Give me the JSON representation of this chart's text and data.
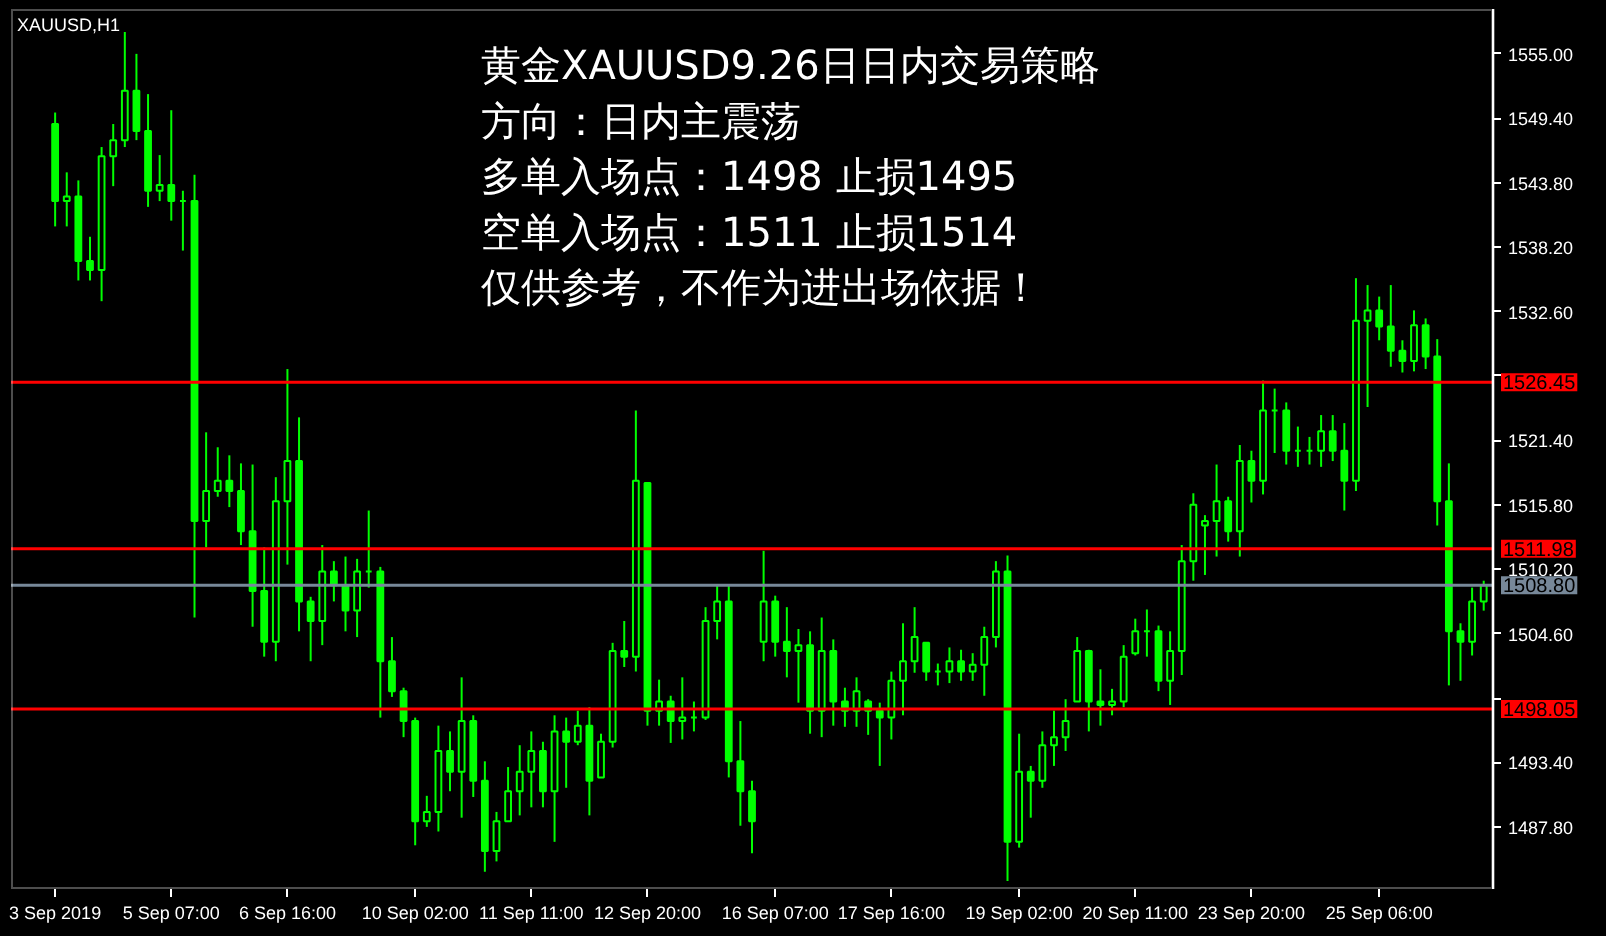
{
  "chart_data": {
    "type": "candlestick",
    "title": "XAUUSD,H1",
    "annotations": [
      "黄金XAUUSD9.26日日内交易策略",
      "方向：日内主震荡",
      "多单入场点：1498  止损1495",
      "空单入场点：1511  止损1514",
      "仅供参考，不作为进出场依据！"
    ],
    "categories": [
      "3 Sep 2019",
      null,
      null,
      null,
      null,
      null,
      null,
      null,
      null,
      null,
      "5 Sep 07:00",
      null,
      null,
      null,
      null,
      null,
      null,
      null,
      null,
      null,
      "6 Sep 16:00",
      null,
      null,
      null,
      null,
      null,
      null,
      null,
      null,
      null,
      null,
      "10 Sep 02:00",
      null,
      null,
      null,
      null,
      null,
      null,
      null,
      null,
      null,
      "11 Sep 11:00",
      null,
      null,
      null,
      null,
      null,
      null,
      null,
      null,
      null,
      "12 Sep 20:00",
      null,
      null,
      null,
      null,
      null,
      null,
      null,
      null,
      null,
      null,
      "16 Sep 07:00",
      null,
      null,
      null,
      null,
      null,
      null,
      null,
      null,
      null,
      "17 Sep 16:00",
      null,
      null,
      null,
      null,
      null,
      null,
      null,
      null,
      null,
      null,
      "19 Sep 02:00",
      null,
      null,
      null,
      null,
      null,
      null,
      null,
      null,
      null,
      "20 Sep 11:00",
      null,
      null,
      null,
      null,
      null,
      null,
      null,
      null,
      null,
      "23 Sep 20:00",
      null,
      null,
      null,
      null,
      null,
      null,
      null,
      null,
      null,
      null,
      "25 Sep 06:00",
      null,
      null,
      null,
      null,
      null,
      null,
      null,
      null,
      null
    ],
    "color": "#00ff00",
    "ohlc": [
      [
        1548.9,
        1549.9,
        1540.0,
        1542.2
      ],
      [
        1542.2,
        1544.7,
        1540.0,
        1542.6
      ],
      [
        1542.6,
        1544.0,
        1535.3,
        1537.0
      ],
      [
        1537.0,
        1539.1,
        1535.3,
        1536.2
      ],
      [
        1536.2,
        1546.9,
        1533.5,
        1546.1
      ],
      [
        1546.1,
        1548.9,
        1543.5,
        1547.5
      ],
      [
        1547.5,
        1556.9,
        1546.9,
        1551.8
      ],
      [
        1551.8,
        1555.0,
        1547.5,
        1548.3
      ],
      [
        1548.3,
        1551.5,
        1541.7,
        1543.1
      ],
      [
        1543.1,
        1546.2,
        1542.2,
        1543.6
      ],
      [
        1543.6,
        1550.1,
        1540.5,
        1542.2
      ],
      [
        1542.2,
        1543.1,
        1537.9,
        1542.2
      ],
      [
        1542.2,
        1544.5,
        1506.0,
        1514.4
      ],
      [
        1514.4,
        1522.1,
        1512.1,
        1517.0
      ],
      [
        1517.0,
        1520.8,
        1516.5,
        1517.9
      ],
      [
        1517.9,
        1520.1,
        1515.6,
        1517.0
      ],
      [
        1517.0,
        1519.4,
        1512.3,
        1513.5
      ],
      [
        1513.5,
        1519.3,
        1505.2,
        1508.3
      ],
      [
        1508.3,
        1512.1,
        1502.6,
        1503.9
      ],
      [
        1503.9,
        1518.2,
        1502.2,
        1516.1
      ],
      [
        1516.1,
        1527.6,
        1510.6,
        1519.6
      ],
      [
        1519.6,
        1523.4,
        1504.8,
        1507.4
      ],
      [
        1507.4,
        1507.8,
        1502.2,
        1505.7
      ],
      [
        1505.7,
        1512.3,
        1503.6,
        1510.0
      ],
      [
        1510.0,
        1510.9,
        1507.4,
        1508.8
      ],
      [
        1508.8,
        1511.3,
        1504.8,
        1506.6
      ],
      [
        1506.6,
        1511.1,
        1504.3,
        1510.0
      ],
      [
        1510.0,
        1515.3,
        1508.6,
        1510.0
      ],
      [
        1510.0,
        1510.4,
        1497.3,
        1502.2
      ],
      [
        1502.2,
        1504.3,
        1499.1,
        1499.6
      ],
      [
        1499.6,
        1499.9,
        1495.6,
        1497.0
      ],
      [
        1497.0,
        1497.3,
        1486.2,
        1488.3
      ],
      [
        1488.3,
        1490.5,
        1487.8,
        1489.1
      ],
      [
        1489.1,
        1496.6,
        1487.4,
        1494.4
      ],
      [
        1494.4,
        1496.1,
        1490.9,
        1492.6
      ],
      [
        1492.6,
        1500.8,
        1488.6,
        1497.0
      ],
      [
        1497.0,
        1497.5,
        1490.4,
        1491.8
      ],
      [
        1491.8,
        1493.5,
        1483.9,
        1485.7
      ],
      [
        1485.7,
        1489.1,
        1484.8,
        1488.3
      ],
      [
        1488.3,
        1493.0,
        1488.3,
        1490.9
      ],
      [
        1490.9,
        1494.9,
        1488.8,
        1492.6
      ],
      [
        1492.6,
        1496.1,
        1489.5,
        1494.4
      ],
      [
        1494.4,
        1495.2,
        1489.5,
        1490.9
      ],
      [
        1490.9,
        1497.5,
        1486.5,
        1496.1
      ],
      [
        1496.1,
        1497.3,
        1491.2,
        1495.2
      ],
      [
        1495.2,
        1497.9,
        1494.9,
        1496.6
      ],
      [
        1496.6,
        1498.2,
        1488.8,
        1491.8
      ],
      [
        1492.1,
        1495.9,
        1492.1,
        1495.2
      ],
      [
        1495.2,
        1503.8,
        1494.7,
        1503.1
      ],
      [
        1503.1,
        1505.7,
        1501.7,
        1502.6
      ],
      [
        1502.6,
        1524.0,
        1501.3,
        1517.9
      ],
      [
        1517.7,
        1517.7,
        1496.6,
        1497.9
      ],
      [
        1497.9,
        1500.6,
        1496.6,
        1498.7
      ],
      [
        1498.7,
        1499.2,
        1495.1,
        1497.0
      ],
      [
        1497.0,
        1500.8,
        1495.4,
        1497.3
      ],
      [
        1497.3,
        1498.7,
        1496.1,
        1497.3
      ],
      [
        1497.3,
        1506.9,
        1497.1,
        1505.7
      ],
      [
        1505.7,
        1508.8,
        1504.1,
        1507.4
      ],
      [
        1507.4,
        1508.8,
        1492.1,
        1493.5
      ],
      [
        1493.5,
        1497.0,
        1487.9,
        1490.9
      ],
      [
        1490.9,
        1491.8,
        1485.5,
        1488.3
      ],
      [
        1503.9,
        1511.8,
        1502.2,
        1507.4
      ],
      [
        1507.4,
        1507.9,
        1502.6,
        1503.9
      ],
      [
        1503.9,
        1506.9,
        1500.8,
        1503.1
      ],
      [
        1503.1,
        1505.0,
        1498.6,
        1503.6
      ],
      [
        1503.6,
        1504.8,
        1495.9,
        1497.9
      ],
      [
        1497.9,
        1506.0,
        1495.6,
        1503.1
      ],
      [
        1503.1,
        1504.1,
        1496.6,
        1498.7
      ],
      [
        1498.7,
        1499.9,
        1496.5,
        1497.9
      ],
      [
        1497.9,
        1500.8,
        1496.5,
        1499.6
      ],
      [
        1498.7,
        1498.9,
        1495.8,
        1497.9
      ],
      [
        1497.9,
        1498.6,
        1493.1,
        1497.3
      ],
      [
        1497.3,
        1501.3,
        1495.4,
        1500.5
      ],
      [
        1500.5,
        1505.5,
        1497.5,
        1502.2
      ],
      [
        1502.2,
        1506.9,
        1501.2,
        1504.3
      ],
      [
        1503.8,
        1503.8,
        1500.5,
        1501.3
      ],
      [
        1501.3,
        1502.0,
        1500.1,
        1501.3
      ],
      [
        1501.3,
        1503.4,
        1500.3,
        1502.2
      ],
      [
        1502.2,
        1503.2,
        1500.5,
        1501.3
      ],
      [
        1501.3,
        1502.9,
        1500.5,
        1501.9
      ],
      [
        1501.9,
        1505.2,
        1499.2,
        1504.3
      ],
      [
        1504.3,
        1510.9,
        1503.4,
        1510.0
      ],
      [
        1510.0,
        1511.4,
        1483.1,
        1486.5
      ],
      [
        1486.5,
        1495.9,
        1486.0,
        1492.6
      ],
      [
        1492.6,
        1493.1,
        1488.6,
        1491.8
      ],
      [
        1491.8,
        1496.1,
        1491.2,
        1494.9
      ],
      [
        1494.9,
        1497.9,
        1493.1,
        1495.6
      ],
      [
        1495.6,
        1498.9,
        1494.4,
        1497.0
      ],
      [
        1498.7,
        1504.3,
        1498.7,
        1503.1
      ],
      [
        1503.1,
        1503.2,
        1496.1,
        1498.7
      ],
      [
        1498.7,
        1501.5,
        1496.6,
        1498.4
      ],
      [
        1498.4,
        1499.8,
        1497.5,
        1498.7
      ],
      [
        1498.7,
        1503.6,
        1498.2,
        1502.6
      ],
      [
        1502.9,
        1505.9,
        1502.7,
        1504.8
      ],
      [
        1504.8,
        1506.7,
        1502.6,
        1504.8
      ],
      [
        1504.8,
        1505.3,
        1499.6,
        1500.5
      ],
      [
        1500.5,
        1504.8,
        1498.4,
        1503.1
      ],
      [
        1503.1,
        1512.3,
        1501.0,
        1510.9
      ],
      [
        1510.9,
        1516.8,
        1509.2,
        1515.8
      ],
      [
        1514.0,
        1514.9,
        1509.7,
        1514.4
      ],
      [
        1514.4,
        1519.3,
        1511.3,
        1516.1
      ],
      [
        1516.1,
        1516.5,
        1512.6,
        1513.5
      ],
      [
        1513.5,
        1521.0,
        1511.3,
        1519.6
      ],
      [
        1519.6,
        1520.5,
        1516.0,
        1517.9
      ],
      [
        1517.9,
        1526.6,
        1516.7,
        1524.0
      ],
      [
        1524.0,
        1525.9,
        1520.3,
        1524.0
      ],
      [
        1524.0,
        1524.7,
        1519.3,
        1520.5
      ],
      [
        1520.5,
        1522.6,
        1519.1,
        1520.5
      ],
      [
        1520.5,
        1521.7,
        1519.3,
        1520.5
      ],
      [
        1520.5,
        1523.6,
        1519.1,
        1522.2
      ],
      [
        1522.2,
        1523.6,
        1519.6,
        1520.5
      ],
      [
        1520.5,
        1522.9,
        1515.3,
        1517.9
      ],
      [
        1517.9,
        1535.5,
        1517.0,
        1531.8
      ],
      [
        1531.8,
        1534.9,
        1524.3,
        1532.7
      ],
      [
        1532.7,
        1533.9,
        1530.1,
        1531.3
      ],
      [
        1531.3,
        1534.9,
        1527.8,
        1529.2
      ],
      [
        1529.2,
        1530.1,
        1527.3,
        1528.3
      ],
      [
        1528.3,
        1532.7,
        1527.4,
        1531.4
      ],
      [
        1531.4,
        1532.0,
        1527.6,
        1528.7
      ],
      [
        1528.7,
        1530.2,
        1514.0,
        1516.1
      ],
      [
        1516.1,
        1519.4,
        1500.1,
        1504.8
      ],
      [
        1504.8,
        1505.5,
        1500.5,
        1503.9
      ],
      [
        1503.9,
        1508.6,
        1502.7,
        1507.4
      ],
      [
        1507.4,
        1509.2,
        1506.6,
        1508.8
      ]
    ],
    "ylim": [
      1482.4,
      1558.9
    ],
    "yticks": [
      {
        "value": 1555,
        "label": "1555.00"
      },
      {
        "value": 1549.4,
        "label": "1549.40"
      },
      {
        "value": 1543.8,
        "label": "1543.80"
      },
      {
        "value": 1538.2,
        "label": "1538.20"
      },
      {
        "value": 1532.6,
        "label": "1532.60"
      },
      {
        "value": 1527,
        "label": null
      },
      {
        "value": 1521.4,
        "label": "1521.40"
      },
      {
        "value": 1515.8,
        "label": "1515.80"
      },
      {
        "value": 1510.2,
        "label": "1510.20"
      },
      {
        "value": 1504.6,
        "label": "1504.60"
      },
      {
        "value": 1499,
        "label": null
      },
      {
        "value": 1493.4,
        "label": "1493.40"
      },
      {
        "value": 1487.8,
        "label": "1487.80"
      }
    ],
    "ref_lines": [
      {
        "axis": "y",
        "value": 1526.45,
        "label": "1526.45",
        "color": "#ff0000"
      },
      {
        "axis": "y",
        "value": 1511.98,
        "label": "1511.98",
        "color": "#ff0000"
      },
      {
        "axis": "y",
        "value": 1508.8,
        "label": "1508.80",
        "color": "#778899"
      },
      {
        "axis": "y",
        "value": 1498.05,
        "label": "1498.05",
        "color": "#ff0000"
      }
    ]
  }
}
